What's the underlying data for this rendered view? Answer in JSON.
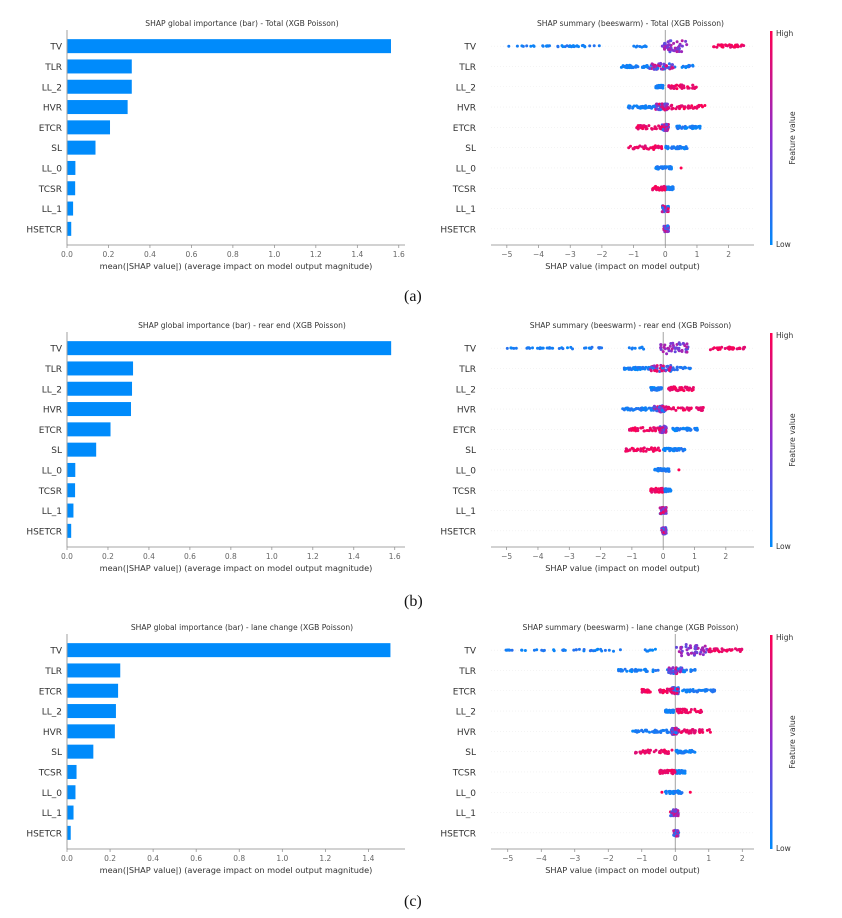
{
  "colors": {
    "bar": "#1e88e5",
    "bar_fill": "#008bfb",
    "low": "#008afb",
    "high": "#ff0052",
    "axis": "#666666",
    "text": "#333333",
    "zero_line": "#999999"
  },
  "colorbar": {
    "high_label": "High",
    "low_label": "Low",
    "title": "Feature value"
  },
  "chart_data": [
    {
      "id": "a-bar",
      "type": "bar",
      "orientation": "horizontal",
      "title": "SHAP global importance (bar) - Total (XGB Poisson)",
      "xlabel": "mean(|SHAP value|) (average impact on model output magnitude)",
      "ylabel": "",
      "categories": [
        "TV",
        "TLR",
        "LL_2",
        "HVR",
        "ETCR",
        "SL",
        "LL_0",
        "TCSR",
        "LL_1",
        "HSETCR"
      ],
      "values": [
        1.56,
        0.31,
        0.31,
        0.29,
        0.205,
        0.135,
        0.038,
        0.037,
        0.027,
        0.018
      ],
      "xlim": [
        0,
        1.63
      ],
      "xticks": [
        0.0,
        0.2,
        0.4,
        0.6,
        0.8,
        1.0,
        1.2,
        1.4,
        1.6
      ],
      "xtick_labels": [
        "0.0",
        "0.2",
        "0.4",
        "0.6",
        "0.8",
        "1.0",
        "1.2",
        "1.4",
        "1.6"
      ],
      "grid": false
    },
    {
      "id": "a-swarm",
      "type": "scatter",
      "subtype": "beeswarm",
      "title": "SHAP summary (beeswarm) - Total (XGB Poisson)",
      "xlabel": "SHAP value (impact on model output)",
      "categories": [
        "TV",
        "TLR",
        "LL_2",
        "HVR",
        "ETCR",
        "SL",
        "LL_0",
        "TCSR",
        "LL_1",
        "HSETCR"
      ],
      "xlim": [
        -5.5,
        2.8
      ],
      "xticks": [
        -5,
        -4,
        -3,
        -2,
        -1,
        0,
        1,
        2
      ],
      "xtick_labels": [
        "−5",
        "−4",
        "−3",
        "−2",
        "−1",
        "0",
        "1",
        "2"
      ],
      "features": [
        {
          "name": "TV",
          "low_range": [
            -5.0,
            -2.0
          ],
          "low_cluster": [
            -1.0,
            -0.6
          ],
          "mid_range": [
            -0.1,
            0.7
          ],
          "high_range": [
            1.5,
            2.5
          ],
          "mid_center": 0.45,
          "high_center": 1.9
        },
        {
          "name": "TLR",
          "low_range": [
            -1.4,
            -0.5
          ],
          "mixed_range": [
            -0.5,
            0.3
          ],
          "low2_range": [
            0.3,
            0.9
          ]
        },
        {
          "name": "LL_2",
          "low_range": [
            -0.3,
            -0.05
          ],
          "high_range": [
            0.1,
            1.0
          ]
        },
        {
          "name": "HVR",
          "low_range": [
            -1.2,
            -0.3
          ],
          "mixed_range": [
            -0.3,
            0.1
          ],
          "high_range": [
            0.1,
            1.3
          ]
        },
        {
          "name": "ETCR",
          "high_range": [
            -1.0,
            -0.1
          ],
          "mixed_range": [
            -0.1,
            0.1
          ],
          "low_range": [
            0.3,
            1.1
          ]
        },
        {
          "name": "SL",
          "high_range": [
            -1.2,
            -0.05
          ],
          "low_range": [
            0.0,
            0.7
          ]
        },
        {
          "name": "LL_0",
          "low_range": [
            -0.3,
            0.2
          ],
          "high_points": [
            0.5
          ]
        },
        {
          "name": "TCSR",
          "high_range": [
            -0.4,
            0.0
          ],
          "low_range": [
            0.0,
            0.25
          ]
        },
        {
          "name": "LL_1",
          "mixed_range": [
            -0.1,
            0.1
          ]
        },
        {
          "name": "HSETCR",
          "mixed_range": [
            -0.05,
            0.1
          ]
        }
      ],
      "colorbar": {
        "low": "Low",
        "high": "High",
        "label": "Feature value"
      }
    },
    {
      "id": "b-bar",
      "type": "bar",
      "orientation": "horizontal",
      "title": "SHAP global importance (bar) - rear end (XGB Poisson)",
      "xlabel": "mean(|SHAP value|) (average impact on model output magnitude)",
      "ylabel": "",
      "categories": [
        "TV",
        "TLR",
        "LL_2",
        "HVR",
        "ETCR",
        "SL",
        "LL_0",
        "TCSR",
        "LL_1",
        "HSETCR"
      ],
      "values": [
        1.58,
        0.32,
        0.315,
        0.31,
        0.21,
        0.14,
        0.038,
        0.037,
        0.029,
        0.018
      ],
      "xlim": [
        0,
        1.65
      ],
      "xticks": [
        0.0,
        0.2,
        0.4,
        0.6,
        0.8,
        1.0,
        1.2,
        1.4,
        1.6
      ],
      "xtick_labels": [
        "0.0",
        "0.2",
        "0.4",
        "0.6",
        "0.8",
        "1.0",
        "1.2",
        "1.4",
        "1.6"
      ],
      "grid": false
    },
    {
      "id": "b-swarm",
      "type": "scatter",
      "subtype": "beeswarm",
      "title": "SHAP summary (beeswarm) - rear end (XGB Poisson)",
      "xlabel": "SHAP value (impact on model output)",
      "categories": [
        "TV",
        "TLR",
        "LL_2",
        "HVR",
        "ETCR",
        "SL",
        "LL_0",
        "TCSR",
        "LL_1",
        "HSETCR"
      ],
      "xlim": [
        -5.5,
        2.9
      ],
      "xticks": [
        -5,
        -4,
        -3,
        -2,
        -1,
        0,
        1,
        2
      ],
      "xtick_labels": [
        "−5",
        "−4",
        "−3",
        "−2",
        "−1",
        "0",
        "1",
        "2"
      ],
      "features": [
        {
          "name": "TV",
          "low_range": [
            -5.1,
            -1.9
          ],
          "low_cluster": [
            -1.1,
            -0.6
          ],
          "mid_range": [
            -0.1,
            0.8
          ],
          "high_range": [
            1.5,
            2.6
          ],
          "mid_center": 0.5,
          "high_center": 1.9
        },
        {
          "name": "TLR",
          "low_range": [
            -1.4,
            -0.4
          ],
          "mixed_range": [
            -0.4,
            0.3
          ],
          "low2_range": [
            0.3,
            0.9
          ]
        },
        {
          "name": "LL_2",
          "low_range": [
            -0.4,
            -0.05
          ],
          "high_range": [
            0.1,
            1.0
          ]
        },
        {
          "name": "HVR",
          "low_range": [
            -1.3,
            -0.3
          ],
          "mixed_range": [
            -0.3,
            0.1
          ],
          "high_range": [
            0.1,
            1.3
          ]
        },
        {
          "name": "ETCR",
          "high_range": [
            -1.1,
            -0.1
          ],
          "mixed_range": [
            -0.1,
            0.1
          ],
          "low_range": [
            0.3,
            1.1
          ]
        },
        {
          "name": "SL",
          "high_range": [
            -1.2,
            -0.05
          ],
          "low_range": [
            0.0,
            0.7
          ]
        },
        {
          "name": "LL_0",
          "low_range": [
            -0.3,
            0.2
          ],
          "high_points": [
            0.5
          ]
        },
        {
          "name": "TCSR",
          "high_range": [
            -0.4,
            0.0
          ],
          "low_range": [
            0.0,
            0.25
          ]
        },
        {
          "name": "LL_1",
          "mixed_range": [
            -0.1,
            0.1
          ]
        },
        {
          "name": "HSETCR",
          "mixed_range": [
            -0.05,
            0.1
          ]
        }
      ],
      "colorbar": {
        "low": "Low",
        "high": "High",
        "label": "Feature value"
      }
    },
    {
      "id": "c-bar",
      "type": "bar",
      "orientation": "horizontal",
      "title": "SHAP global importance (bar) - lane change (XGB Poisson)",
      "xlabel": "mean(|SHAP value|) (average impact on model output magnitude)",
      "ylabel": "",
      "categories": [
        "TV",
        "TLR",
        "ETCR",
        "LL_2",
        "HVR",
        "SL",
        "TCSR",
        "LL_0",
        "LL_1",
        "HSETCR"
      ],
      "values": [
        1.5,
        0.245,
        0.235,
        0.225,
        0.22,
        0.12,
        0.042,
        0.037,
        0.028,
        0.015
      ],
      "xlim": [
        0,
        1.57
      ],
      "xticks": [
        0.0,
        0.2,
        0.4,
        0.6,
        0.8,
        1.0,
        1.2,
        1.4
      ],
      "xtick_labels": [
        "0.0",
        "0.2",
        "0.4",
        "0.6",
        "0.8",
        "1.0",
        "1.2",
        "1.4"
      ],
      "grid": false
    },
    {
      "id": "c-swarm",
      "type": "scatter",
      "subtype": "beeswarm",
      "title": "SHAP summary (beeswarm) - lane change (XGB Poisson)",
      "xlabel": "SHAP value (impact on model output)",
      "categories": [
        "TV",
        "TLR",
        "ETCR",
        "LL_2",
        "HVR",
        "SL",
        "TCSR",
        "LL_0",
        "LL_1",
        "HSETCR"
      ],
      "xlim": [
        -5.5,
        2.35
      ],
      "xticks": [
        -5,
        -4,
        -3,
        -2,
        -1,
        0,
        1,
        2
      ],
      "xtick_labels": [
        "−5",
        "−4",
        "−3",
        "−2",
        "−1",
        "0",
        "1",
        "2"
      ],
      "features": [
        {
          "name": "TV",
          "low_range": [
            -5.1,
            -1.6
          ],
          "low_cluster": [
            -0.9,
            -0.5
          ],
          "mid_range": [
            0.0,
            1.0
          ],
          "high_range": [
            1.0,
            2.0
          ],
          "mid_center": 0.5,
          "high_center": 1.5
        },
        {
          "name": "TLR",
          "low_range": [
            -1.7,
            -0.2
          ],
          "mixed_range": [
            -0.2,
            0.2
          ],
          "low2_range": [
            0.2,
            0.6
          ]
        },
        {
          "name": "ETCR",
          "high_range": [
            -1.0,
            -0.1
          ],
          "mixed_range": [
            -0.1,
            0.1
          ],
          "low_range": [
            0.1,
            1.2
          ]
        },
        {
          "name": "LL_2",
          "low_range": [
            -0.3,
            -0.05
          ],
          "high_range": [
            0.05,
            0.8
          ]
        },
        {
          "name": "HVR",
          "low_range": [
            -1.3,
            -0.1
          ],
          "mixed_range": [
            -0.1,
            0.1
          ],
          "high_range": [
            0.1,
            1.1
          ]
        },
        {
          "name": "SL",
          "high_range": [
            -1.2,
            -0.05
          ],
          "low_range": [
            0.0,
            0.6
          ]
        },
        {
          "name": "TCSR",
          "high_range": [
            -0.5,
            0.0
          ],
          "low_range": [
            0.0,
            0.3
          ]
        },
        {
          "name": "LL_0",
          "low_range": [
            -0.3,
            0.2
          ],
          "high_points": [
            -0.4,
            0.45
          ]
        },
        {
          "name": "LL_1",
          "mixed_range": [
            -0.15,
            0.1
          ]
        },
        {
          "name": "HSETCR",
          "mixed_range": [
            -0.05,
            0.1
          ]
        }
      ],
      "colorbar": {
        "low": "Low",
        "high": "High",
        "label": "Feature value"
      }
    }
  ],
  "captions": [
    "(a)",
    "(b)",
    "(c)"
  ]
}
